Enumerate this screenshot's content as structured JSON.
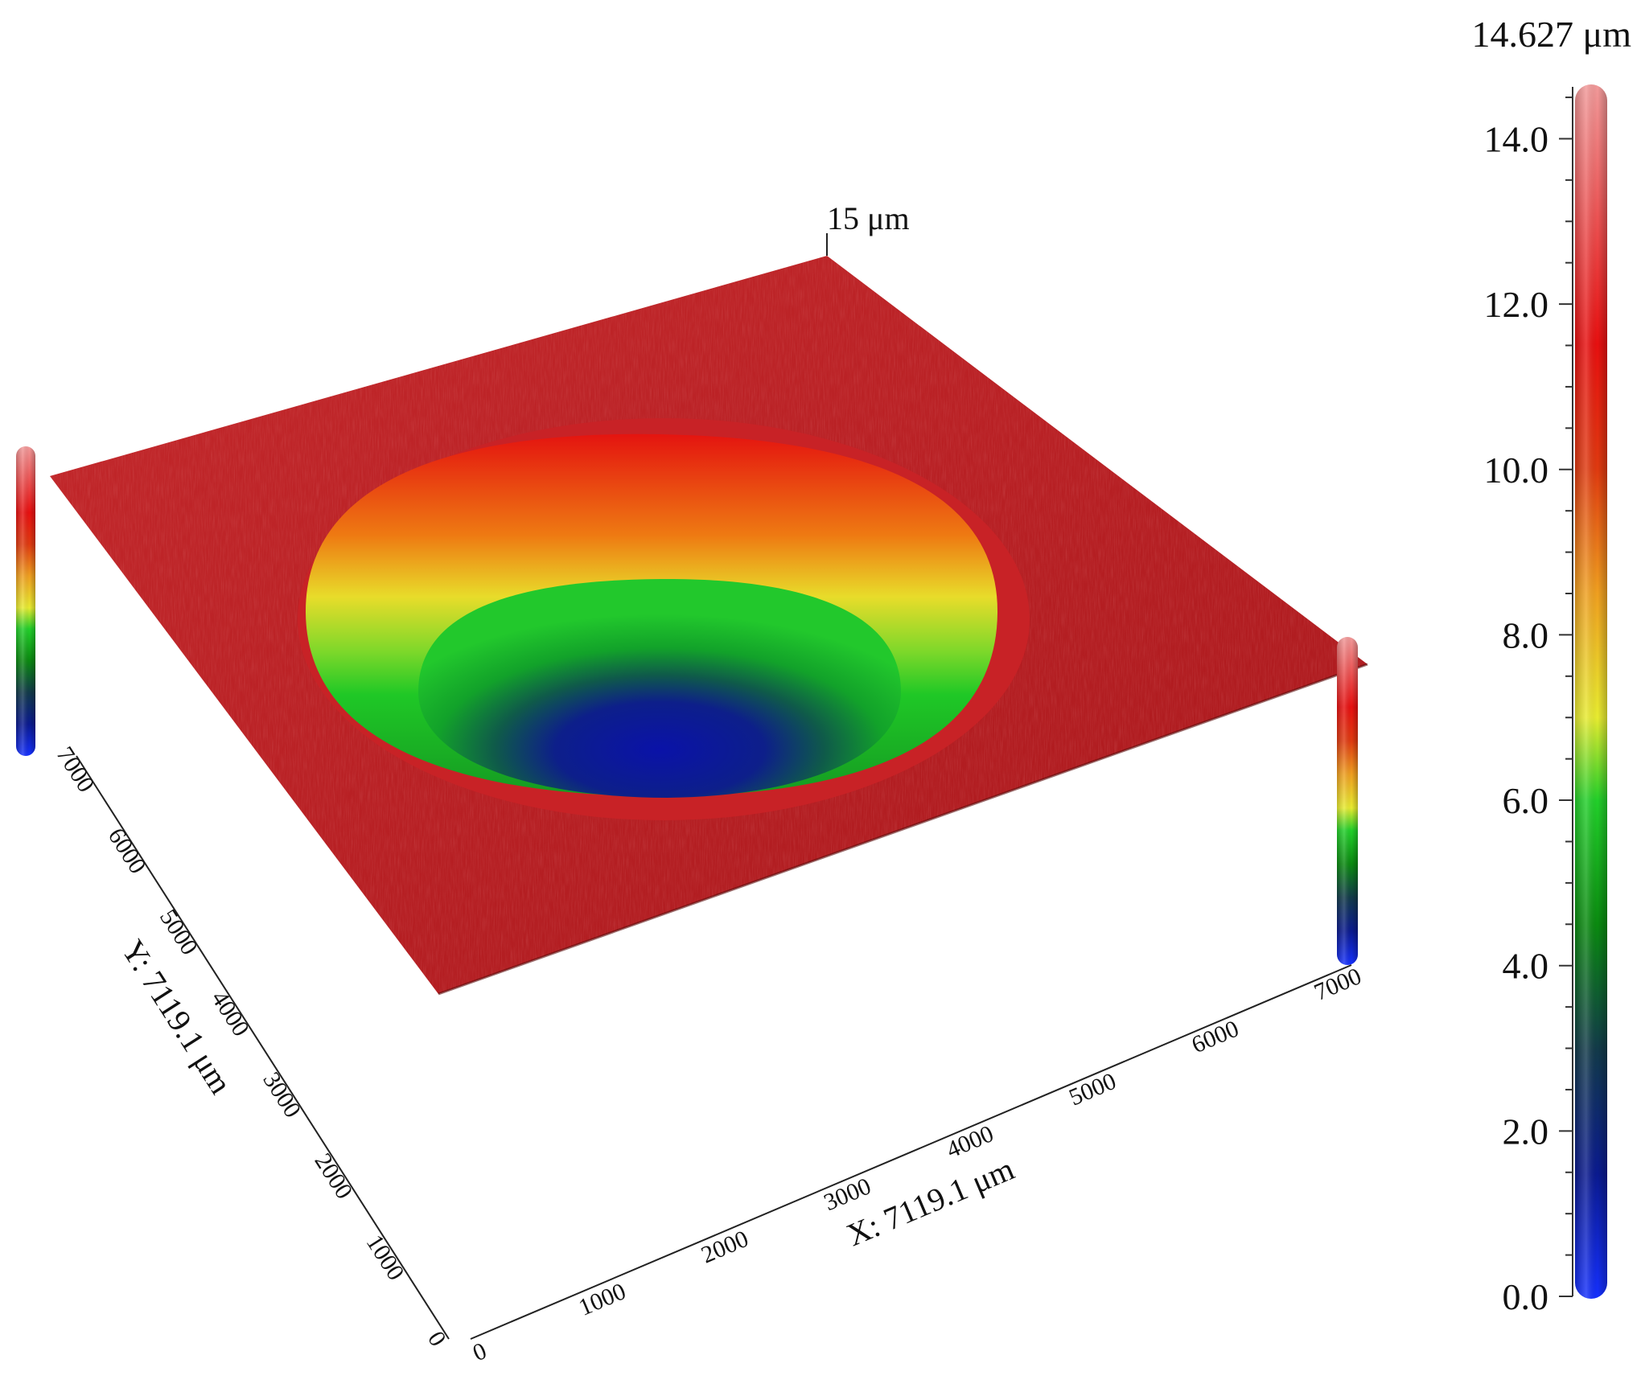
{
  "chart_data": {
    "type": "surface-3d",
    "z_max_label": "14.627 μm",
    "z_top_marker": "15 μm",
    "x_axis": {
      "label": "X: 7119.1 μm",
      "ticks": [
        "0",
        "1000",
        "2000",
        "3000",
        "4000",
        "5000",
        "6000",
        "7000"
      ],
      "range": [
        0,
        7119.1
      ]
    },
    "y_axis": {
      "label": "Y: 7119.1 μm",
      "ticks": [
        "0",
        "1000",
        "2000",
        "3000",
        "4000",
        "5000",
        "6000",
        "7000"
      ],
      "range": [
        0,
        7119.1
      ]
    },
    "colorbar": {
      "ticks": [
        "0.0",
        "2.0",
        "4.0",
        "6.0",
        "8.0",
        "10.0",
        "12.0",
        "14.0"
      ],
      "tick_values": [
        0,
        2,
        4,
        6,
        8,
        10,
        12,
        14
      ],
      "range": [
        0,
        14.627
      ],
      "colormap": [
        {
          "value": 0.0,
          "color": "#1530ff"
        },
        {
          "value": 1.5,
          "color": "#0a1a90"
        },
        {
          "value": 3.0,
          "color": "#123a4a"
        },
        {
          "value": 4.5,
          "color": "#0a8a10"
        },
        {
          "value": 6.0,
          "color": "#22d02a"
        },
        {
          "value": 7.0,
          "color": "#e8ec30"
        },
        {
          "value": 8.5,
          "color": "#f0a020"
        },
        {
          "value": 10.0,
          "color": "#e03a10"
        },
        {
          "value": 11.5,
          "color": "#e81010"
        },
        {
          "value": 14.627,
          "color": "#f29a9a"
        }
      ]
    },
    "surface": {
      "plane_height": 11.5,
      "crater_depth_min": 0.0,
      "crater_center": [
        3400,
        3600
      ],
      "plane_color": "#c0282a"
    }
  }
}
